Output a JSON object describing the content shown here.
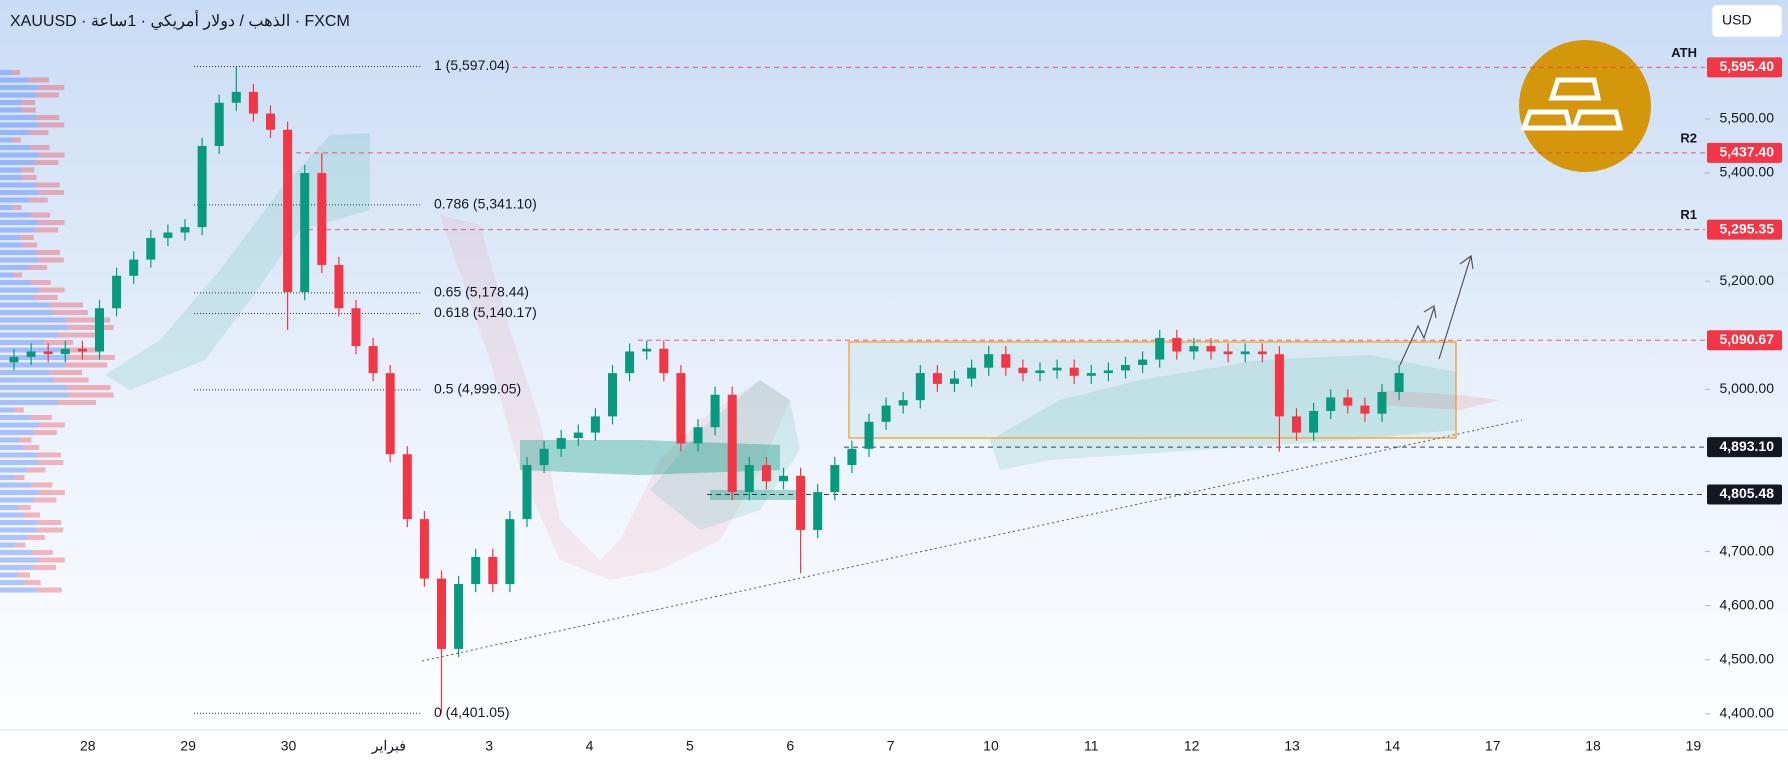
{
  "header": {
    "symbol_line": "XAUUSD · الذهب / دولار أمريكي · 1ساعة · FXCM",
    "currency": "USD"
  },
  "chart_data": {
    "type": "candlestick",
    "categories": [
      "28",
      "29",
      "30",
      "فبراير",
      "3",
      "4",
      "5",
      "6",
      "7",
      "10",
      "11",
      "12",
      "13",
      "14",
      "17",
      "18",
      "19"
    ],
    "open": [
      5050,
      5060,
      5070,
      5065,
      5075,
      5070,
      5150,
      5210,
      5240,
      5280,
      5290,
      5300,
      5450,
      5530,
      5550,
      5510,
      5480,
      5180,
      5400,
      5230,
      5150,
      5080,
      5030,
      4880,
      4760,
      4650,
      4520,
      4640,
      4690,
      4640,
      4760,
      4860,
      4890,
      4910,
      4920,
      4950,
      5030,
      5070,
      5075,
      5030,
      4900,
      4930,
      4990,
      4810,
      4860,
      4830,
      4840,
      4740,
      4810,
      4860,
      4890,
      4940,
      4970,
      4980,
      5030,
      5010,
      5020,
      5040,
      5065,
      5040,
      5030,
      5035,
      5040,
      5025,
      5030,
      5035,
      5045,
      5055,
      5095,
      5070,
      5080,
      5070,
      5065,
      5070,
      5065,
      4950,
      4920,
      4960,
      4985,
      4970,
      4955,
      4995
    ],
    "high": [
      5075,
      5085,
      5085,
      5090,
      5090,
      5165,
      5225,
      5255,
      5295,
      5305,
      5315,
      5465,
      5545,
      5597,
      5565,
      5525,
      5495,
      5415,
      5437,
      5245,
      5165,
      5095,
      5045,
      4895,
      4775,
      4665,
      4655,
      4705,
      4705,
      4775,
      4875,
      4905,
      4925,
      4935,
      4965,
      5045,
      5085,
      5090,
      5090,
      5045,
      4945,
      5005,
      5005,
      4875,
      4875,
      4855,
      4855,
      4825,
      4875,
      4905,
      4955,
      4985,
      4995,
      5045,
      5045,
      5035,
      5055,
      5080,
      5080,
      5055,
      5050,
      5055,
      5055,
      5045,
      5050,
      5060,
      5070,
      5110,
      5110,
      5095,
      5095,
      5085,
      5085,
      5085,
      5080,
      4965,
      4975,
      5000,
      5000,
      4985,
      5010,
      5045
    ],
    "low": [
      5035,
      5045,
      5050,
      5050,
      5055,
      5055,
      5135,
      5195,
      5225,
      5265,
      5275,
      5285,
      5435,
      5515,
      5495,
      5465,
      5110,
      5165,
      5215,
      5135,
      5065,
      5015,
      4865,
      4745,
      4635,
      4401,
      4505,
      4625,
      4625,
      4625,
      4745,
      4845,
      4875,
      4895,
      4905,
      4935,
      5015,
      5055,
      5015,
      4885,
      4885,
      4915,
      4795,
      4795,
      4815,
      4815,
      4660,
      4725,
      4795,
      4845,
      4875,
      4925,
      4955,
      4965,
      4995,
      4995,
      5005,
      5025,
      5025,
      5015,
      5015,
      5020,
      5010,
      5010,
      5015,
      5020,
      5030,
      5040,
      5055,
      5055,
      5055,
      5050,
      5050,
      5050,
      4885,
      4905,
      4905,
      4945,
      4955,
      4940,
      4940,
      4980
    ],
    "close": [
      5060,
      5070,
      5065,
      5075,
      5070,
      5150,
      5210,
      5240,
      5280,
      5290,
      5300,
      5450,
      5530,
      5550,
      5510,
      5480,
      5180,
      5400,
      5230,
      5150,
      5080,
      5030,
      4880,
      4760,
      4650,
      4520,
      4640,
      4690,
      4640,
      4760,
      4860,
      4890,
      4910,
      4920,
      4950,
      5030,
      5070,
      5075,
      5030,
      4900,
      4930,
      4990,
      4810,
      4860,
      4830,
      4840,
      4740,
      4810,
      4860,
      4890,
      4940,
      4970,
      4980,
      5030,
      5010,
      5020,
      5040,
      5065,
      5040,
      5030,
      5035,
      5040,
      5025,
      5030,
      5035,
      5045,
      5055,
      5095,
      5070,
      5080,
      5070,
      5065,
      5070,
      5065,
      4950,
      4920,
      4960,
      4985,
      4970,
      4955,
      4995,
      5030
    ],
    "up_color": "#089981",
    "down_color": "#f23645",
    "ylim": [
      4370,
      5720
    ],
    "yticks": [
      {
        "value": 4400,
        "label": "4,400.00"
      },
      {
        "value": 4500,
        "label": "4,500.00"
      },
      {
        "value": 4600,
        "label": "4,600.00"
      },
      {
        "value": 4700,
        "label": "4,700.00"
      },
      {
        "value": 5000,
        "label": "5,000.00"
      },
      {
        "value": 5200,
        "label": "5,200.00"
      },
      {
        "value": 5400,
        "label": "5,400.00"
      },
      {
        "value": 5500,
        "label": "5,500.00"
      }
    ],
    "price_levels": [
      {
        "name": "ATH",
        "value": 5595.4,
        "label": "5,595.40",
        "color": "#f23645"
      },
      {
        "name": "R2",
        "value": 5437.4,
        "label": "5,437.40",
        "color": "#f23645"
      },
      {
        "name": "R1",
        "value": 5295.35,
        "label": "5,295.35",
        "color": "#f23645"
      },
      {
        "value": 5090.67,
        "label": "5,090.67",
        "color": "#f23645"
      },
      {
        "value": 4893.1,
        "label": "4,893.10",
        "color": "#131722"
      },
      {
        "value": 4805.48,
        "label": "4,805.48",
        "color": "#131722"
      }
    ],
    "fib_levels": [
      {
        "value": 5597.04,
        "label": "1 (5,597.04)"
      },
      {
        "value": 5341.1,
        "label": "0.786 (5,341.10)"
      },
      {
        "value": 5178.44,
        "label": "0.65 (5,178.44)"
      },
      {
        "value": 5140.17,
        "label": "0.618 (5,140.17)"
      },
      {
        "value": 4999.05,
        "label": "0.5 (4,999.05)"
      },
      {
        "value": 4401.05,
        "label": "0 (4,401.05)"
      }
    ]
  }
}
